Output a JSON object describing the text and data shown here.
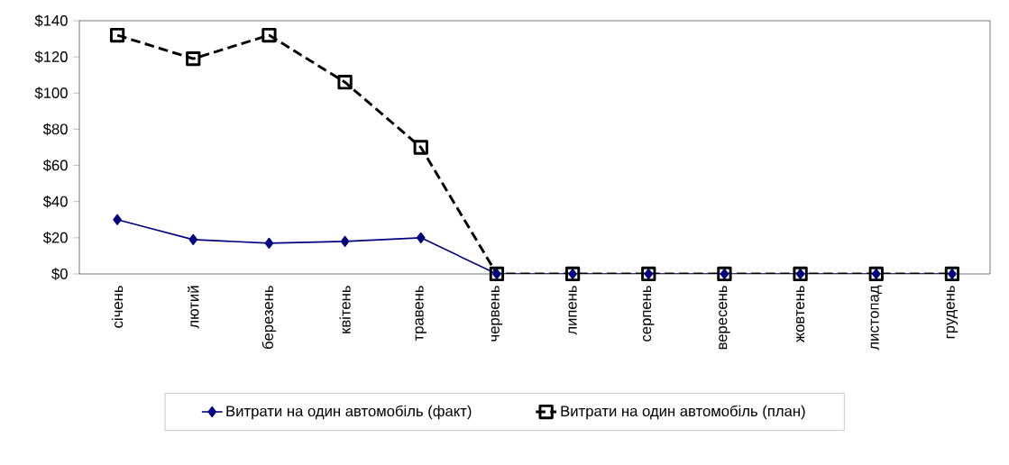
{
  "chart_data": {
    "type": "line",
    "categories": [
      "січень",
      "лютий",
      "березень",
      "квітень",
      "травень",
      "червень",
      "липень",
      "серпень",
      "вересень",
      "жовтень",
      "листопад",
      "грудень"
    ],
    "series": [
      {
        "name": "Витрати на один автомобіль (факт)",
        "color": "#000080",
        "marker": "diamond",
        "line_style": "solid",
        "values": [
          30,
          19,
          17,
          18,
          20,
          0,
          0,
          0,
          0,
          0,
          0,
          0
        ]
      },
      {
        "name": "Витрати на один автомобіль (план)",
        "color": "#000000",
        "marker": "square",
        "line_style": "dashed",
        "values": [
          132,
          119,
          132,
          106,
          70,
          0,
          0,
          0,
          0,
          0,
          0,
          0
        ]
      }
    ],
    "ylim": [
      0,
      140
    ],
    "yticks": [
      {
        "value": 0,
        "label": "$0"
      },
      {
        "value": 20,
        "label": "$20"
      },
      {
        "value": 40,
        "label": "$40"
      },
      {
        "value": 60,
        "label": "$60"
      },
      {
        "value": 80,
        "label": "$80"
      },
      {
        "value": 100,
        "label": "$100"
      },
      {
        "value": 120,
        "label": "$120"
      },
      {
        "value": 140,
        "label": "$140"
      }
    ],
    "grid": false,
    "legend": "bottom"
  }
}
